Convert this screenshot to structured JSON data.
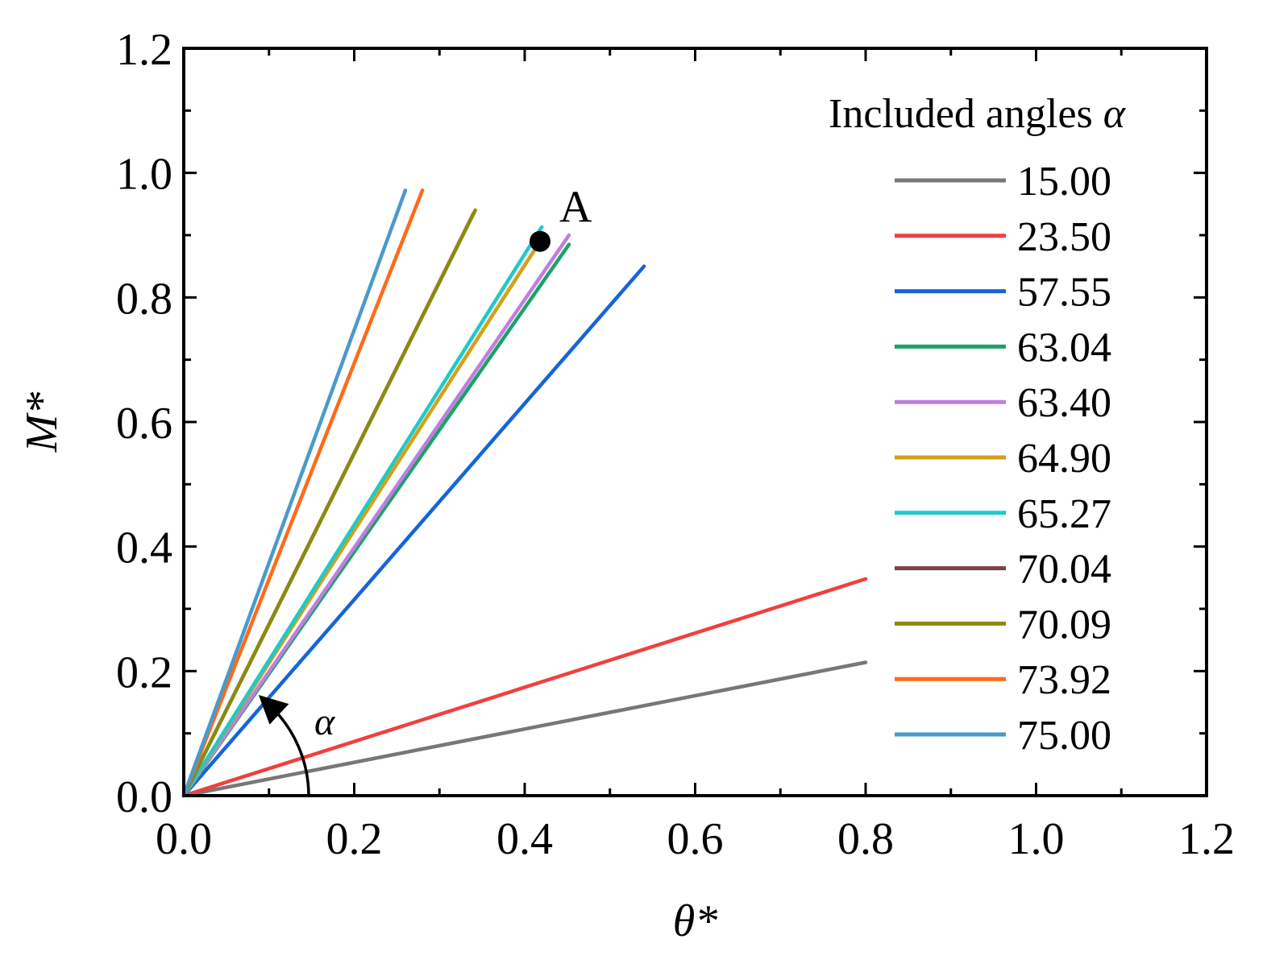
{
  "chart_data": {
    "type": "line",
    "title": "",
    "xlabel": "θ*",
    "ylabel": "M*",
    "xlim": [
      0,
      1.2
    ],
    "ylim": [
      0,
      1.2
    ],
    "x_ticks": [
      "0.0",
      "0.2",
      "0.4",
      "0.6",
      "0.8",
      "1.0",
      "1.2"
    ],
    "y_ticks": [
      "0.0",
      "0.2",
      "0.4",
      "0.6",
      "0.8",
      "1.0",
      "1.2"
    ],
    "legend_title": "Included angles α",
    "legend_title_text": "Included angles ",
    "legend_title_symbol": "α",
    "legend_position": "top-right",
    "series": [
      {
        "name": "15.00",
        "color": "#777777",
        "x": [
          0,
          0.8
        ],
        "y": [
          0,
          0.214
        ]
      },
      {
        "name": "23.50",
        "color": "#f0403f",
        "x": [
          0,
          0.8
        ],
        "y": [
          0,
          0.348
        ]
      },
      {
        "name": "57.55",
        "color": "#1565d8",
        "x": [
          0,
          0.54
        ],
        "y": [
          0,
          0.85
        ]
      },
      {
        "name": "63.04",
        "color": "#1aa364",
        "x": [
          0,
          0.452
        ],
        "y": [
          0,
          0.885
        ]
      },
      {
        "name": "63.40",
        "color": "#c07ee0",
        "x": [
          0,
          0.452
        ],
        "y": [
          0,
          0.9
        ]
      },
      {
        "name": "64.90",
        "color": "#d4a017",
        "x": [
          0,
          0.418
        ],
        "y": [
          0,
          0.89
        ]
      },
      {
        "name": "65.27",
        "color": "#20c9c9",
        "x": [
          0,
          0.42
        ],
        "y": [
          0,
          0.913
        ]
      },
      {
        "name": "70.04",
        "color": "#7b4444",
        "x": [
          0,
          0.34
        ],
        "y": [
          0,
          0.935
        ]
      },
      {
        "name": "70.09",
        "color": "#8b8a10",
        "x": [
          0,
          0.342
        ],
        "y": [
          0,
          0.94
        ]
      },
      {
        "name": "73.92",
        "color": "#ff6a1a",
        "x": [
          0,
          0.28
        ],
        "y": [
          0,
          0.972
        ]
      },
      {
        "name": "75.00",
        "color": "#4a9acb",
        "x": [
          0,
          0.26
        ],
        "y": [
          0,
          0.972
        ]
      }
    ],
    "annotations": [
      {
        "label": "A",
        "x": 0.418,
        "y": 0.89,
        "marker": "filled-circle"
      },
      {
        "label": "α",
        "note": "curved arrow indicating the included angle"
      }
    ]
  }
}
